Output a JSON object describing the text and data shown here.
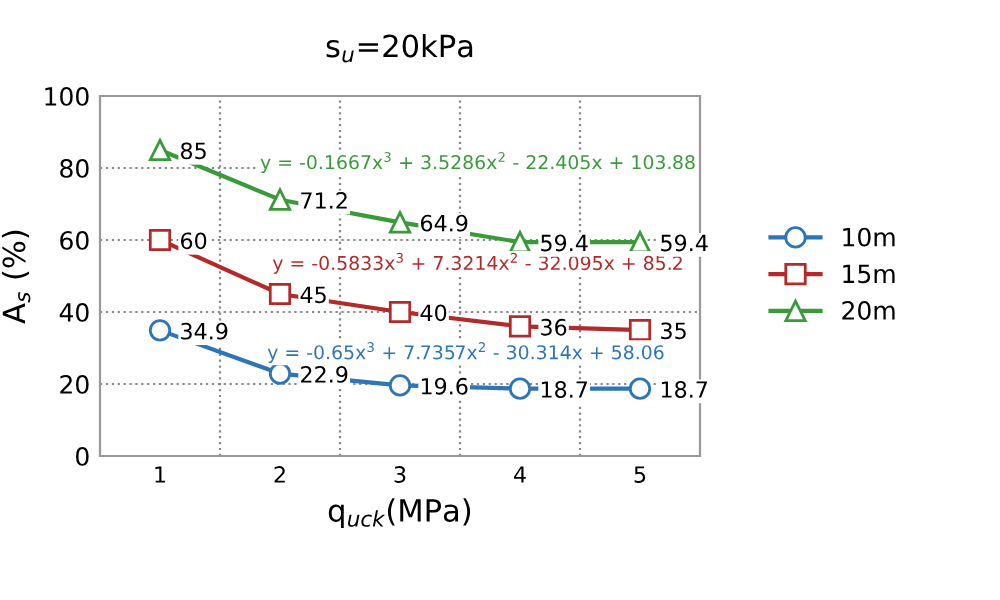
{
  "chart_data": {
    "type": "line",
    "title": "s$_{u}$=20kPa",
    "xlabel": "q$_{uck}$(MPa)",
    "ylabel": "A$_{s}$ (%)",
    "categories": [
      "1",
      "2",
      "3",
      "4",
      "5"
    ],
    "series": [
      {
        "name": "10m",
        "color": "#2e75b6",
        "marker": "circle",
        "values": [
          34.9,
          22.9,
          19.6,
          18.7,
          18.7
        ]
      },
      {
        "name": "15m",
        "color": "#b22a2a",
        "marker": "square",
        "values": [
          60,
          45,
          40,
          36,
          35
        ]
      },
      {
        "name": "20m",
        "color": "#3a9a3a",
        "marker": "triangle",
        "values": [
          85,
          71.2,
          64.9,
          59.4,
          59.4
        ]
      }
    ],
    "annotations": [
      "y = -0.65x$^{3}$ + 7.7357x$^{2}$ - 30.314x + 58.06",
      "y = -0.5833x$^{3}$ + 7.3214x$^{2}$ - 32.095x + 85.2",
      "y = -0.1667x$^{3}$ + 3.5286x$^{2}$ - 22.405x + 103.88"
    ],
    "ylim": [
      0,
      100
    ],
    "yticks": [
      0,
      20,
      40,
      60,
      80,
      100
    ],
    "grid": true,
    "legend": "right",
    "data_labels": true
  }
}
